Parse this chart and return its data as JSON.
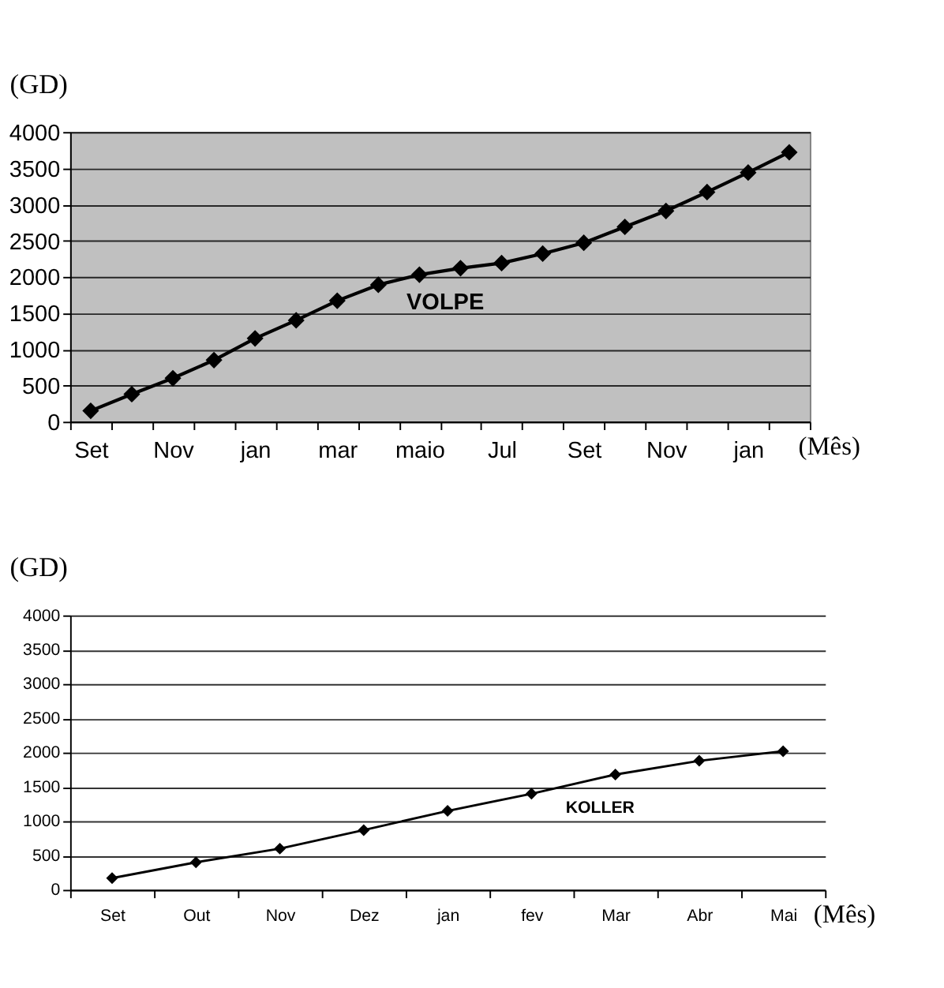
{
  "chart_data": [
    {
      "type": "line",
      "ylabel": "(GD)",
      "xlabel": "(Mês)",
      "categories": [
        "Set",
        null,
        "Nov",
        null,
        "jan",
        null,
        "mar",
        null,
        "maio",
        null,
        "Jul",
        null,
        "Set",
        null,
        "Nov",
        null,
        "jan",
        null
      ],
      "series": [
        {
          "name": "VOLPE",
          "color": "#000000",
          "values": [
            150,
            380,
            600,
            850,
            1150,
            1400,
            1670,
            1890,
            2030,
            2120,
            2190,
            2320,
            2470,
            2690,
            2910,
            3170,
            3440,
            3720
          ]
        }
      ],
      "ylim": [
        0,
        4000
      ],
      "yticks": [
        0,
        500,
        1000,
        1500,
        2000,
        2500,
        3000,
        3500,
        4000
      ],
      "grid": "y",
      "legend": false,
      "marker": "diamond",
      "line_style": "solid"
    },
    {
      "type": "line",
      "ylabel": "(GD)",
      "xlabel": "(Mês)",
      "categories": [
        "Set",
        "Out",
        "Nov",
        "Dez",
        "jan",
        "fev",
        "Mar",
        "Abr",
        "Mai"
      ],
      "series": [
        {
          "name": "KOLLER",
          "color": "#000000",
          "values": [
            170,
            400,
            600,
            870,
            1150,
            1400,
            1680,
            1880,
            2020
          ]
        }
      ],
      "ylim": [
        0,
        4000
      ],
      "yticks": [
        0,
        500,
        1000,
        1500,
        2000,
        2500,
        3000,
        3500,
        4000
      ],
      "grid": "y",
      "legend": false,
      "marker": "diamond",
      "line_style": "solid"
    }
  ]
}
